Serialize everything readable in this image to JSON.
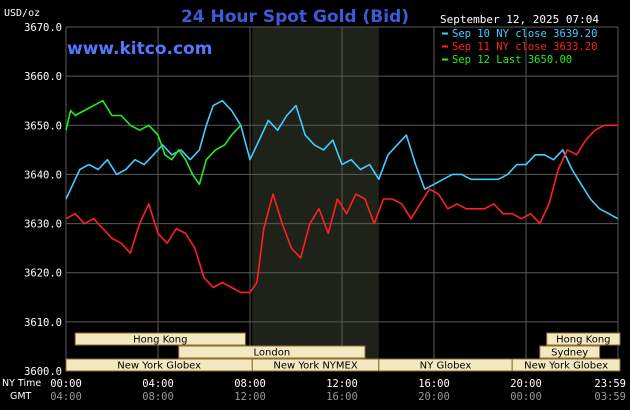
{
  "header": {
    "title": "24 Hour Spot Gold (Bid)",
    "units": "USD/oz",
    "timestamp": "September 12, 2025 07:04",
    "website": "www.kitco.com"
  },
  "colors": {
    "background": "#000000",
    "grid": "#5a5a5a",
    "axis_text": "#ffffff",
    "title": "#3d5bd9",
    "website": "#5577ff",
    "highlight_band": "#1e2218",
    "session_bar": "#f2e8c2",
    "session_border": "#8a6d2a"
  },
  "chart_data": {
    "type": "line",
    "title": "24 Hour Spot Gold (Bid)",
    "ylabel": "USD/oz",
    "ylim": [
      3600,
      3670
    ],
    "yticks": [
      "3670.0",
      "3660.0",
      "3650.0",
      "3640.0",
      "3630.0",
      "3620.0",
      "3610.0",
      "3600.0"
    ],
    "xlim": [
      0,
      24
    ],
    "x_ticks_ny": [
      "00:00",
      "04:00",
      "08:00",
      "12:00",
      "16:00",
      "20:00",
      "23:59"
    ],
    "x_ticks_gmt": [
      "04:00",
      "08:00",
      "12:00",
      "16:00",
      "20:00",
      "00:00",
      "03:59"
    ],
    "x_axis_label_ny": "NY Time",
    "x_axis_label_gmt": "GMT",
    "highlight_range": [
      8.1,
      13.6
    ],
    "grid": true,
    "legend_position": "top-right",
    "series": [
      {
        "name": "Sep 10 NY close 3639.20",
        "color": "#44ccff",
        "x": [
          0,
          0.3,
          0.6,
          1,
          1.4,
          1.8,
          2.2,
          2.6,
          3,
          3.4,
          3.8,
          4.2,
          4.6,
          5,
          5.4,
          5.8,
          6.1,
          6.4,
          6.8,
          7.2,
          7.6,
          8,
          8.4,
          8.8,
          9.2,
          9.6,
          10,
          10.4,
          10.8,
          11.2,
          11.6,
          12,
          12.4,
          12.8,
          13.2,
          13.6,
          14,
          14.4,
          14.8,
          15.2,
          15.6,
          16,
          16.4,
          16.8,
          17.2,
          17.6,
          18,
          18.4,
          18.8,
          19.2,
          19.6,
          20,
          20.4,
          20.8,
          21.2,
          21.6,
          22,
          22.4,
          22.8,
          23.2,
          23.6,
          23.99
        ],
        "values": [
          3635,
          3638,
          3641,
          3642,
          3641,
          3643,
          3640,
          3641,
          3643,
          3642,
          3644,
          3646,
          3644,
          3645,
          3643,
          3645,
          3650,
          3654,
          3655,
          3653,
          3650,
          3643,
          3647,
          3651,
          3649,
          3652,
          3654,
          3648,
          3646,
          3645,
          3647,
          3642,
          3643,
          3641,
          3642,
          3639,
          3644,
          3646,
          3648,
          3642,
          3637,
          3638,
          3639,
          3640,
          3640,
          3639,
          3639,
          3639,
          3639,
          3640,
          3642,
          3642,
          3644,
          3644,
          3643,
          3645,
          3641,
          3638,
          3635,
          3633,
          3632,
          3631
        ]
      },
      {
        "name": "Sep 11 NY close 3633.20",
        "color": "#ff2020",
        "x": [
          0,
          0.4,
          0.8,
          1.2,
          1.6,
          2,
          2.4,
          2.8,
          3.2,
          3.6,
          4,
          4.4,
          4.8,
          5.2,
          5.6,
          6,
          6.4,
          6.8,
          7.2,
          7.6,
          8,
          8.3,
          8.6,
          9,
          9.4,
          9.8,
          10.2,
          10.6,
          11,
          11.4,
          11.8,
          12.2,
          12.6,
          13,
          13.4,
          13.8,
          14.2,
          14.6,
          15,
          15.4,
          15.8,
          16.2,
          16.6,
          17,
          17.4,
          17.8,
          18.2,
          18.6,
          19,
          19.4,
          19.8,
          20.2,
          20.6,
          21,
          21.4,
          21.8,
          22.2,
          22.6,
          23,
          23.4,
          23.99
        ],
        "values": [
          3631,
          3632,
          3630,
          3631,
          3629,
          3627,
          3626,
          3624,
          3630,
          3634,
          3628,
          3626,
          3629,
          3628,
          3625,
          3619,
          3617,
          3618,
          3617,
          3616,
          3616,
          3618,
          3629,
          3636,
          3630,
          3625,
          3623,
          3630,
          3633,
          3628,
          3635,
          3632,
          3636,
          3635,
          3630,
          3635,
          3635,
          3634,
          3631,
          3634,
          3637,
          3636,
          3633,
          3634,
          3633,
          3633,
          3633,
          3634,
          3632,
          3632,
          3631,
          3632,
          3630,
          3634,
          3641,
          3645,
          3644,
          3647,
          3649,
          3650,
          3650
        ]
      },
      {
        "name": "Sep 12 Last 3650.00",
        "color": "#22ee22",
        "x": [
          0,
          0.2,
          0.4,
          0.8,
          1.2,
          1.6,
          2,
          2.4,
          2.8,
          3.2,
          3.6,
          4,
          4.3,
          4.6,
          4.9,
          5.2,
          5.5,
          5.8,
          6.1,
          6.5,
          6.9,
          7.2,
          7.6
        ],
        "values": [
          3649,
          3653,
          3652,
          3653,
          3654,
          3655,
          3652,
          3652,
          3650,
          3649,
          3650,
          3648,
          3644,
          3643,
          3645,
          3643,
          3640,
          3638,
          3643,
          3645,
          3646,
          3648,
          3650
        ]
      }
    ],
    "sessions": [
      {
        "label": "Hong Kong",
        "start": 0.4,
        "end": 7.8,
        "row": 1
      },
      {
        "label": "London",
        "start": 4.9,
        "end": 13.0,
        "row": 2
      },
      {
        "label": "New York Globex",
        "start": 0,
        "end": 8.1,
        "row": 3
      },
      {
        "label": "New York NYMEX",
        "start": 8.1,
        "end": 13.6,
        "row": 3
      },
      {
        "label": "NY Globex",
        "start": 13.6,
        "end": 19.4,
        "row": 3
      },
      {
        "label": "Hong Kong",
        "start": 20.9,
        "end": 24.4,
        "row": 1
      },
      {
        "label": "Sydney",
        "start": 20.6,
        "end": 23.2,
        "row": 2
      },
      {
        "label": "New York Globex",
        "start": 19.4,
        "end": 24.4,
        "row": 3
      }
    ]
  }
}
